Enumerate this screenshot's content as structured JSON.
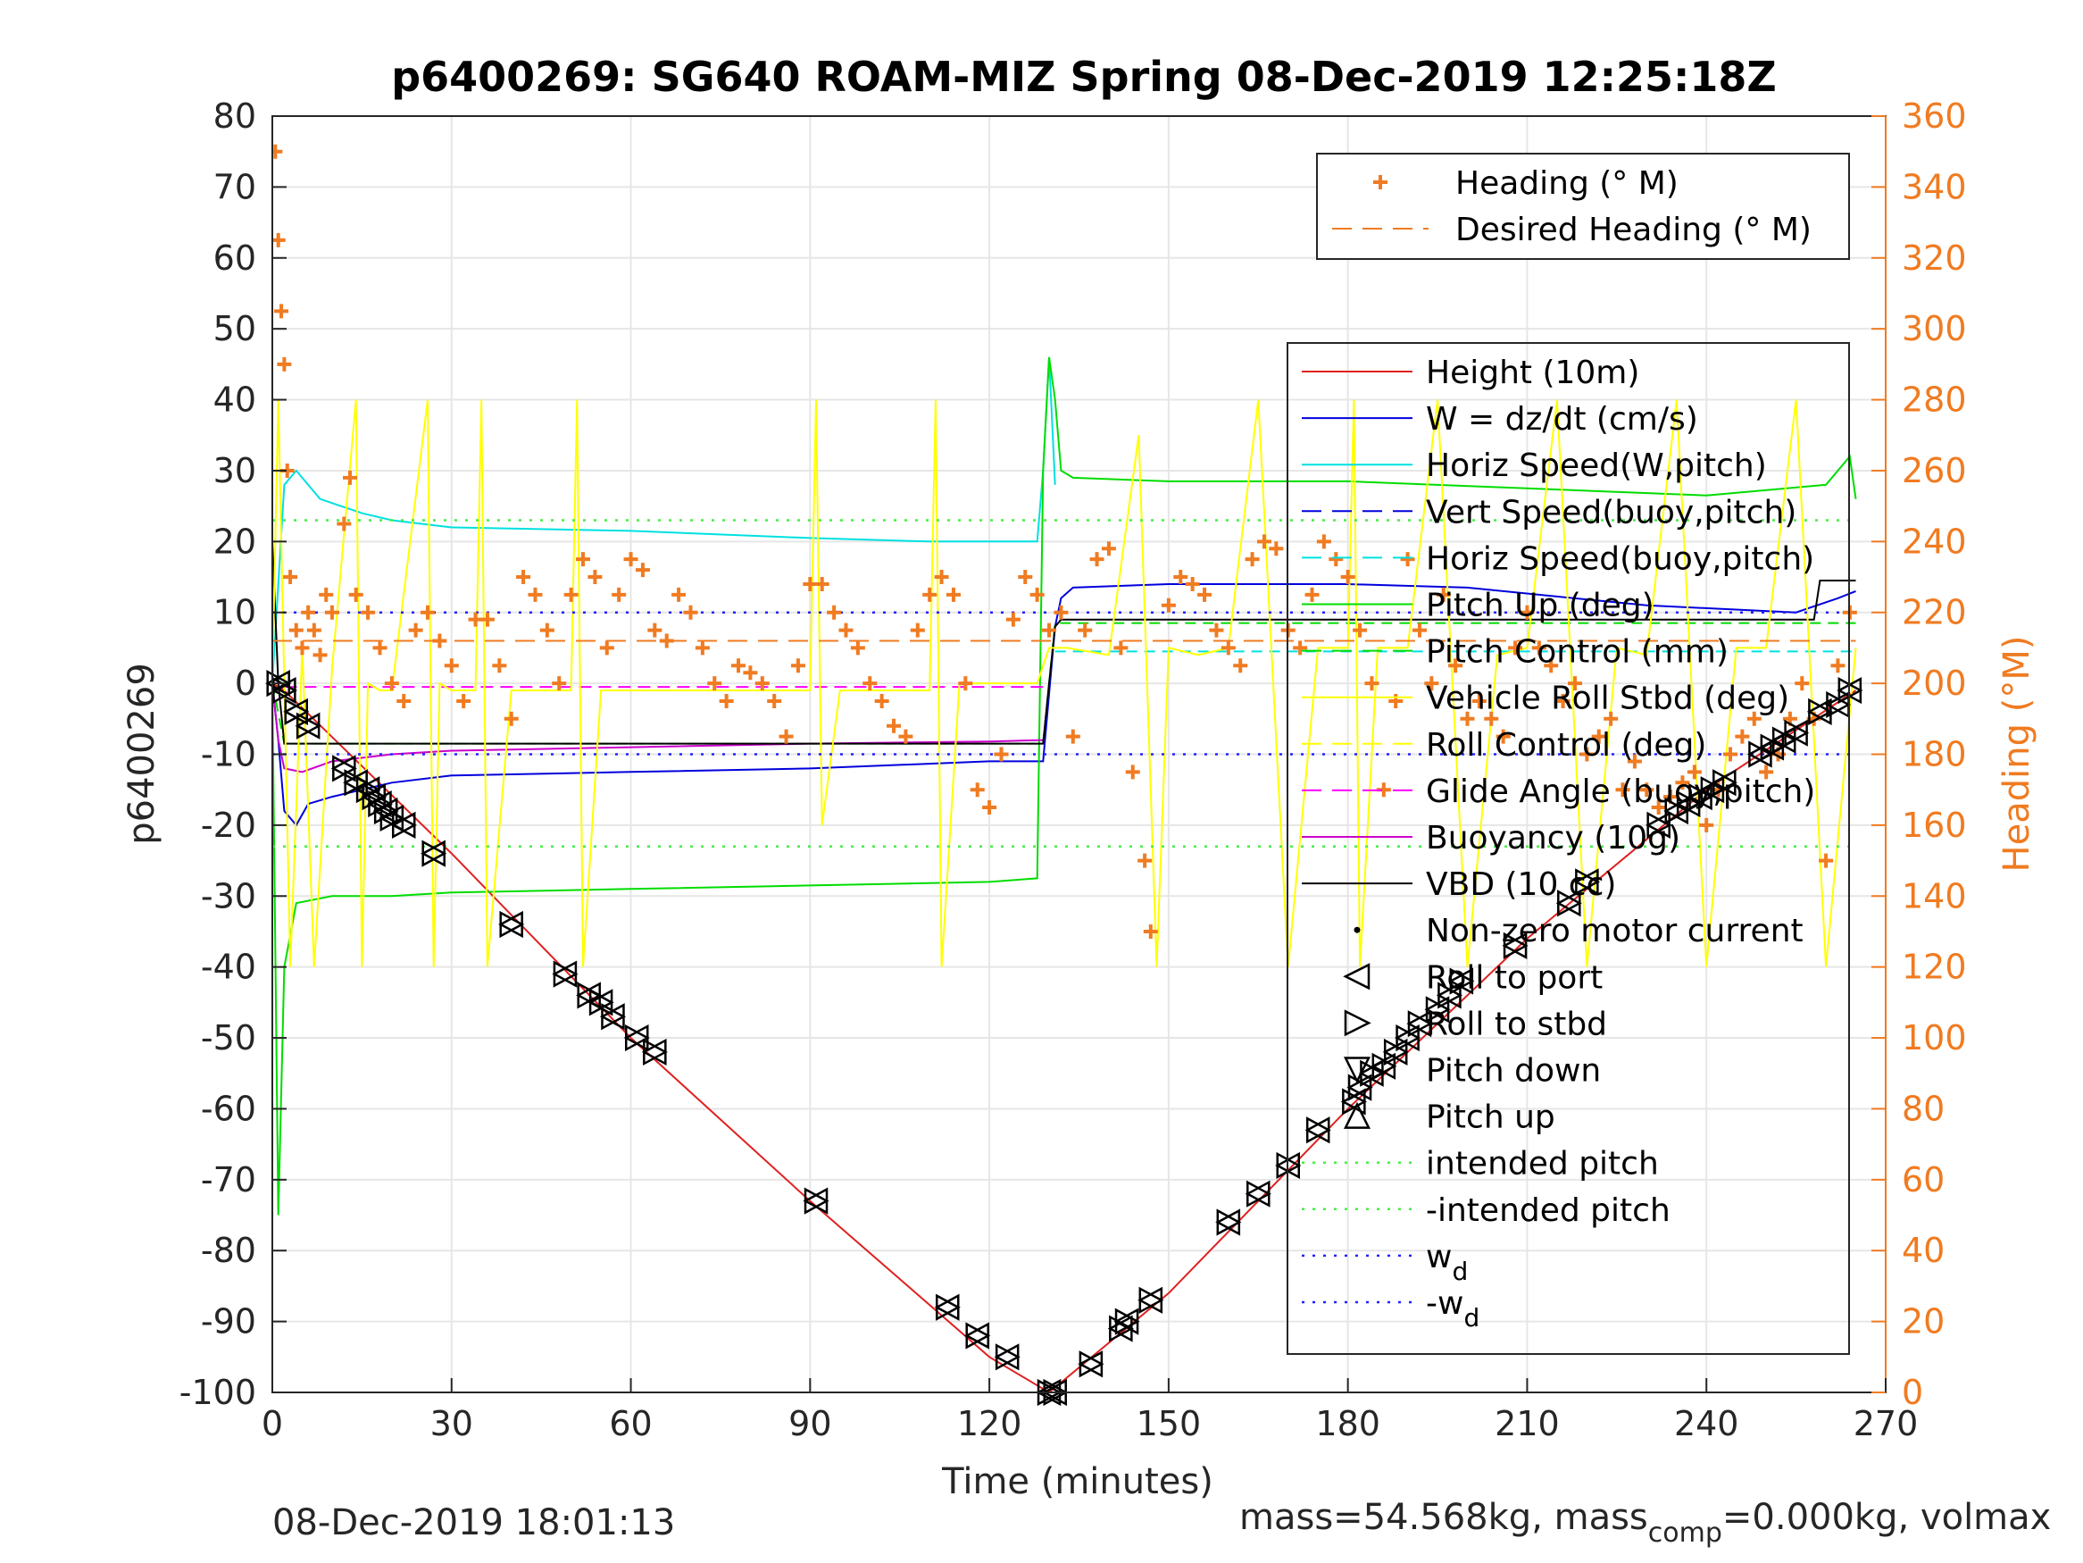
{
  "chart_data": {
    "type": "line",
    "title": "p6400269: SG640 ROAM-MIZ Spring 08-Dec-2019 12:25:18Z",
    "xlabel": "Time (minutes)",
    "ylabel": "p6400269",
    "y2label": "Heading (°M)",
    "xlim": [
      0,
      270
    ],
    "ylim": [
      -100,
      80
    ],
    "y2lim": [
      0,
      360
    ],
    "xticks": [
      "0",
      "30",
      "60",
      "90",
      "120",
      "150",
      "180",
      "210",
      "240",
      "270"
    ],
    "yticks": [
      "80",
      "70",
      "60",
      "50",
      "40",
      "30",
      "20",
      "10",
      "0",
      "-10",
      "-20",
      "-30",
      "-40",
      "-50",
      "-60",
      "-70",
      "-80",
      "-90",
      "-100"
    ],
    "y2ticks": [
      "360",
      "340",
      "320",
      "300",
      "280",
      "260",
      "240",
      "220",
      "200",
      "180",
      "160",
      "140",
      "120",
      "100",
      "80",
      "60",
      "40",
      "20",
      "0"
    ],
    "grid": true,
    "footer_left": "08-Dec-2019 18:01:13",
    "footer_right": "mass=54.568kg, mass",
    "footer_right_sub": "comp",
    "footer_right_tail": "=0.000kg, volmax",
    "legend_heading": {
      "entries": [
        {
          "label": "Heading (° M)",
          "color": "#f07b21",
          "style": "plus"
        },
        {
          "label": "Desired Heading (° M)",
          "color": "#f07b21",
          "style": "dashed"
        }
      ]
    },
    "legend_main": {
      "placement": "right",
      "entries": [
        {
          "label": "Height (10m)",
          "color": "#e02020",
          "style": "solid"
        },
        {
          "label": "W = dz/dt (cm/s)",
          "color": "#0000dd",
          "style": "solid"
        },
        {
          "label": "Horiz Speed(W,pitch)",
          "color": "#00e0e0",
          "style": "solid"
        },
        {
          "label": "Vert Speed(buoy,pitch)",
          "color": "#0000dd",
          "style": "dashed"
        },
        {
          "label": "Horiz Speed(buoy,pitch)",
          "color": "#00e0e0",
          "style": "dashed"
        },
        {
          "label": "Pitch Up (deg)",
          "color": "#00dd00",
          "style": "solid"
        },
        {
          "label": "Pitch Control (mm)",
          "color": "#00dd00",
          "style": "dashed"
        },
        {
          "label": "Vehicle Roll Stbd (deg)",
          "color": "#ffff00",
          "style": "solid"
        },
        {
          "label": "Roll Control (deg)",
          "color": "#ffff00",
          "style": "dashed"
        },
        {
          "label": "Glide Angle (buoy,pitch)",
          "color": "#ff00ff",
          "style": "dashed"
        },
        {
          "label": "Buoyancy (10g)",
          "color": "#cc00cc",
          "style": "solid"
        },
        {
          "label": "VBD (10 cc)",
          "color": "#000000",
          "style": "solid"
        },
        {
          "label": "Non-zero motor current",
          "color": "#000000",
          "style": "dot"
        },
        {
          "label": "Roll to port",
          "color": "#000000",
          "style": "tri-left"
        },
        {
          "label": "Roll to stbd",
          "color": "#000000",
          "style": "tri-right"
        },
        {
          "label": "Pitch down",
          "color": "#000000",
          "style": "tri-down"
        },
        {
          "label": "Pitch up",
          "color": "#000000",
          "style": "tri-up"
        },
        {
          "label": "intended pitch",
          "color": "#44ee44",
          "style": "dotted"
        },
        {
          "label": "-intended pitch",
          "color": "#44ee44",
          "style": "dotted"
        },
        {
          "label": "w",
          "sub": "d",
          "color": "#2222ff",
          "style": "dotted"
        },
        {
          "label": "-w",
          "sub": "d",
          "color": "#2222ff",
          "style": "dotted"
        }
      ]
    },
    "series": [
      {
        "name": "Height (10m)",
        "axis": "left",
        "color": "#e02020",
        "x": [
          0,
          2,
          30,
          60,
          90,
          120,
          130,
          150,
          180,
          210,
          240,
          265
        ],
        "y": [
          0,
          -1,
          -24,
          -50,
          -73,
          -95,
          -100,
          -86,
          -60,
          -36,
          -15,
          -1
        ]
      },
      {
        "name": "W = dz/dt (cm/s)",
        "axis": "left",
        "color": "#0000dd",
        "x": [
          0,
          1,
          2,
          4,
          6,
          10,
          20,
          30,
          60,
          90,
          120,
          129,
          131,
          132,
          134,
          150,
          180,
          200,
          230,
          255,
          262,
          265
        ],
        "y": [
          0,
          -8,
          -18,
          -20,
          -17,
          -16,
          -14,
          -13,
          -12.5,
          -12,
          -11,
          -11,
          8,
          12,
          13.5,
          14,
          14,
          13.5,
          11,
          10,
          12,
          13
        ]
      },
      {
        "name": "Horiz Speed(W,pitch)",
        "axis": "left",
        "color": "#00e0e0",
        "x": [
          0,
          2,
          4,
          8,
          15,
          20,
          30,
          60,
          90,
          110,
          128,
          129,
          130,
          131
        ],
        "y": [
          0,
          28,
          30,
          26,
          24,
          23,
          22,
          21.5,
          20.5,
          20,
          20,
          30,
          46,
          28
        ]
      },
      {
        "name": "Horiz Speed(buoy,pitch)",
        "axis": "left",
        "color": "#00e0e0",
        "dash": "12,8",
        "x": [
          131,
          150,
          180,
          210,
          240,
          265
        ],
        "y": [
          4.5,
          4.5,
          4.5,
          4.5,
          4.5,
          4.5
        ]
      },
      {
        "name": "Pitch Up (deg)",
        "axis": "left",
        "color": "#00dd00",
        "x": [
          0,
          1,
          2,
          4,
          10,
          20,
          30,
          60,
          90,
          120,
          128,
          129,
          130,
          131,
          132,
          134,
          150,
          180,
          210,
          240,
          260,
          264,
          265
        ],
        "y": [
          0,
          -75,
          -40,
          -31,
          -30,
          -30,
          -29.5,
          -29,
          -28.5,
          -28,
          -27.5,
          30,
          46,
          40,
          30,
          29,
          28.5,
          28.5,
          27.5,
          26.5,
          28,
          32,
          26
        ]
      },
      {
        "name": "Pitch Control (mm)",
        "axis": "left",
        "color": "#00dd00",
        "dash": "12,8",
        "x": [
          0,
          2,
          30,
          60,
          90,
          129,
          131,
          150,
          180,
          210,
          240,
          265
        ],
        "y": [
          0,
          -8.5,
          -8.5,
          -8.5,
          -8.5,
          -8.5,
          8.5,
          8.5,
          8.5,
          8.5,
          8.5,
          8.5
        ]
      },
      {
        "name": "Buoyancy (10g)",
        "axis": "left",
        "color": "#cc00cc",
        "x": [
          0,
          1,
          2,
          5,
          10,
          20,
          30,
          60,
          90,
          120,
          129
        ],
        "y": [
          0,
          -8,
          -12,
          -12.5,
          -11,
          -10,
          -9.5,
          -9,
          -8.5,
          -8.2,
          -8
        ]
      },
      {
        "name": "Glide Angle (buoy,pitch)",
        "axis": "left",
        "color": "#ff00ff",
        "dash": "14,8",
        "x": [
          2,
          30,
          60,
          90,
          129
        ],
        "y": [
          -0.5,
          -0.5,
          -0.5,
          -0.5,
          -0.5
        ]
      },
      {
        "name": "VBD (10 cc)",
        "axis": "left",
        "color": "#000000",
        "x": [
          0,
          1,
          2,
          30,
          60,
          90,
          120,
          129,
          130,
          131,
          132,
          150,
          180,
          210,
          240,
          258,
          259,
          265
        ],
        "y": [
          20,
          0,
          -8.5,
          -8.5,
          -8.5,
          -8.5,
          -8.5,
          -8.5,
          0,
          8,
          9,
          9,
          9,
          9,
          9,
          9,
          14.5,
          14.5
        ]
      },
      {
        "name": "Vehicle Roll Stbd (deg)",
        "axis": "left",
        "color": "#ffff00",
        "x": [
          0,
          1,
          3,
          5,
          7,
          10,
          14,
          15,
          16,
          18,
          20,
          26,
          27,
          28,
          30,
          34,
          35,
          36,
          40,
          45,
          50,
          51,
          52,
          55,
          60,
          65,
          70,
          75,
          80,
          90,
          91,
          92,
          95,
          100,
          105,
          110,
          111,
          112,
          115,
          118,
          120,
          125,
          128,
          130,
          133,
          140,
          145,
          148,
          150,
          155,
          160,
          165,
          170,
          175,
          180,
          181,
          182,
          185,
          190,
          195,
          200,
          205,
          210,
          215,
          220,
          225,
          230,
          235,
          240,
          245,
          250,
          255,
          260,
          265
        ],
        "y": [
          0,
          40,
          -40,
          5,
          -40,
          2,
          40,
          -40,
          0,
          -1,
          -1,
          40,
          -40,
          0,
          -1,
          -1,
          40,
          -40,
          -1,
          -1,
          -1,
          40,
          -40,
          -1,
          -1,
          -1,
          -1,
          -1,
          -1,
          -1,
          40,
          -20,
          -1,
          -1,
          -1,
          -1,
          40,
          -40,
          0,
          0,
          0,
          0,
          0,
          5,
          5,
          4,
          35,
          -40,
          5,
          4,
          5,
          40,
          -40,
          5,
          5,
          40,
          -40,
          5,
          5,
          40,
          -40,
          4,
          5,
          40,
          -40,
          5,
          4,
          40,
          -40,
          5,
          5,
          40,
          -40,
          5
        ]
      },
      {
        "name": "intended pitch",
        "axis": "left",
        "color": "#44ee44",
        "dash": "3,9",
        "x": [
          0,
          265
        ],
        "y": [
          23,
          23
        ]
      },
      {
        "name": "-intended pitch",
        "axis": "left",
        "color": "#44ee44",
        "dash": "3,9",
        "x": [
          0,
          265
        ],
        "y": [
          -23,
          -23
        ]
      },
      {
        "name": "w_d",
        "axis": "left",
        "color": "#2222ff",
        "dash": "3,9",
        "x": [
          0,
          265
        ],
        "y": [
          10,
          10
        ]
      },
      {
        "name": "-w_d",
        "axis": "left",
        "color": "#2222ff",
        "dash": "3,9",
        "x": [
          0,
          265
        ],
        "y": [
          -10,
          -10
        ]
      },
      {
        "name": "Desired Heading (° M)",
        "axis": "right",
        "color": "#f07b21",
        "dash": "22,12",
        "x": [
          0,
          265
        ],
        "y": [
          212,
          212
        ]
      }
    ],
    "heading_points": {
      "x": [
        0.5,
        1,
        1.5,
        2,
        2.5,
        3,
        4,
        5,
        6,
        7,
        8,
        9,
        10,
        12,
        13,
        14,
        16,
        18,
        20,
        22,
        24,
        26,
        28,
        30,
        32,
        34,
        36,
        38,
        40,
        42,
        44,
        46,
        48,
        50,
        52,
        54,
        56,
        58,
        60,
        62,
        64,
        66,
        68,
        70,
        72,
        74,
        76,
        78,
        80,
        82,
        84,
        86,
        88,
        90,
        92,
        94,
        96,
        98,
        100,
        102,
        104,
        106,
        108,
        110,
        112,
        114,
        116,
        118,
        120,
        122,
        124,
        126,
        128,
        130,
        132,
        134,
        136,
        138,
        140,
        142,
        144,
        146,
        147,
        150,
        152,
        154,
        156,
        158,
        160,
        162,
        164,
        166,
        168,
        170,
        172,
        174,
        176,
        178,
        180,
        182,
        184,
        186,
        188,
        190,
        192,
        194,
        196,
        198,
        200,
        202,
        204,
        206,
        208,
        210,
        212,
        214,
        216,
        218,
        220,
        222,
        224,
        226,
        228,
        230,
        232,
        234,
        236,
        238,
        240,
        242,
        244,
        246,
        248,
        250,
        252,
        254,
        256,
        258,
        260,
        262,
        264
      ],
      "y": [
        350,
        325,
        305,
        290,
        260,
        230,
        215,
        210,
        220,
        215,
        208,
        225,
        220,
        245,
        258,
        225,
        220,
        210,
        200,
        195,
        215,
        220,
        212,
        205,
        195,
        218,
        218,
        205,
        190,
        230,
        225,
        215,
        200,
        225,
        235,
        230,
        210,
        225,
        235,
        232,
        215,
        212,
        225,
        220,
        210,
        200,
        195,
        205,
        203,
        200,
        195,
        185,
        205,
        228,
        228,
        220,
        215,
        210,
        200,
        195,
        188,
        185,
        215,
        225,
        230,
        225,
        200,
        170,
        165,
        180,
        218,
        230,
        225,
        215,
        220,
        185,
        215,
        235,
        238,
        210,
        175,
        150,
        130,
        222,
        230,
        228,
        225,
        215,
        210,
        205,
        235,
        240,
        238,
        215,
        210,
        225,
        240,
        235,
        230,
        215,
        200,
        170,
        195,
        235,
        215,
        200,
        225,
        205,
        190,
        195,
        190,
        185,
        210,
        220,
        210,
        205,
        195,
        200,
        180,
        185,
        190,
        170,
        178,
        170,
        165,
        168,
        172,
        175,
        160,
        170,
        180,
        185,
        190,
        175,
        180,
        190,
        200,
        190,
        150,
        205,
        220
      ]
    },
    "markers": {
      "x": [
        1,
        2,
        4,
        6,
        12,
        14,
        16,
        17,
        18,
        19,
        20,
        22,
        27,
        40,
        49,
        53,
        55,
        57,
        61,
        64,
        91,
        113,
        118,
        123,
        130,
        131,
        137,
        142,
        143,
        147,
        160,
        165,
        170,
        175,
        181,
        182,
        184,
        186,
        188,
        190,
        192,
        195,
        197,
        199,
        208,
        217,
        220,
        232,
        235,
        237,
        239,
        241,
        243,
        249,
        251,
        253,
        255,
        259,
        262,
        264
      ],
      "y": [
        0,
        -1,
        -4,
        -6,
        -12,
        -14,
        -15,
        -16,
        -17,
        -18,
        -19,
        -20,
        -24,
        -34,
        -41,
        -44,
        -45,
        -47,
        -50,
        -52,
        -73,
        -88,
        -92,
        -95,
        -100,
        -100,
        -96,
        -91,
        -90,
        -87,
        -76,
        -72,
        -68,
        -63,
        -59,
        -57,
        -55,
        -54,
        -52,
        -50,
        -48,
        -46,
        -44,
        -42,
        -37,
        -31,
        -28,
        -20,
        -18,
        -17,
        -16,
        -15,
        -14,
        -10,
        -9,
        -8,
        -7,
        -4,
        -3,
        -1
      ]
    }
  }
}
